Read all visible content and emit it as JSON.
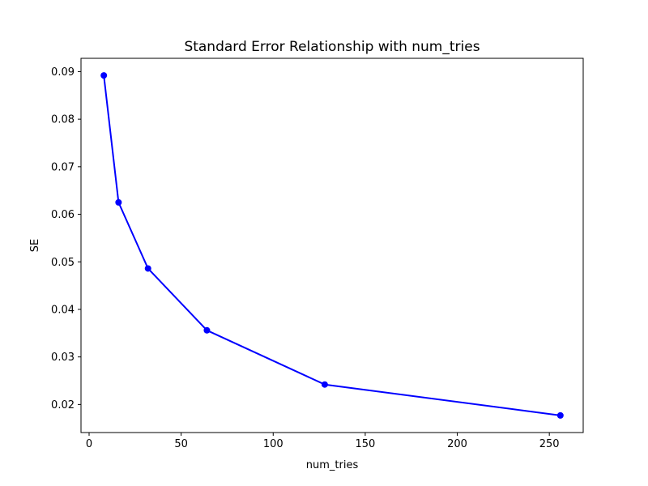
{
  "chart_data": {
    "type": "line",
    "title": "Standard Error Relationship with num_tries",
    "xlabel": "num_tries",
    "ylabel": "SE",
    "x": [
      8,
      16,
      32,
      64,
      128,
      256
    ],
    "y": [
      0.0892,
      0.0625,
      0.0486,
      0.0356,
      0.0242,
      0.0177
    ],
    "series_name": "SE",
    "xlim": [
      -4.4,
      268.4
    ],
    "ylim": [
      0.0141,
      0.0928
    ],
    "xticks": [
      0,
      50,
      100,
      150,
      200,
      250
    ],
    "yticks": [
      0.02,
      0.03,
      0.04,
      0.05,
      0.06,
      0.07,
      0.08,
      0.09
    ],
    "ytick_decimals": 2,
    "grid": false,
    "legend_position": "none",
    "line_color": "#0000ff",
    "marker": "o",
    "marker_color": "#0000ff",
    "background_color": "#ffffff",
    "spine_color": "#000000"
  }
}
